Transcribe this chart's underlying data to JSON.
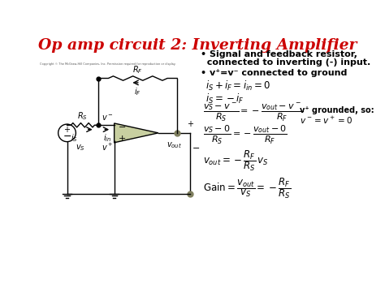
{
  "title": "Op amp circuit 2: Inverting Amplifier",
  "title_color": "#cc0000",
  "title_fontsize": 13.5,
  "bg_color": "#ffffff",
  "text_color": "#000000",
  "circuit_color": "#000000",
  "oa_fill": "#c8cfa0",
  "bullet1a": "• Signal and feedback resistor,",
  "bullet1b": "  connected to inverting (-) input.",
  "bullet2": "• v⁺=v⁻ connected to ground",
  "note1": "v⁺ grounded, so:",
  "note2": "v⁻ = v⁺ = 0"
}
